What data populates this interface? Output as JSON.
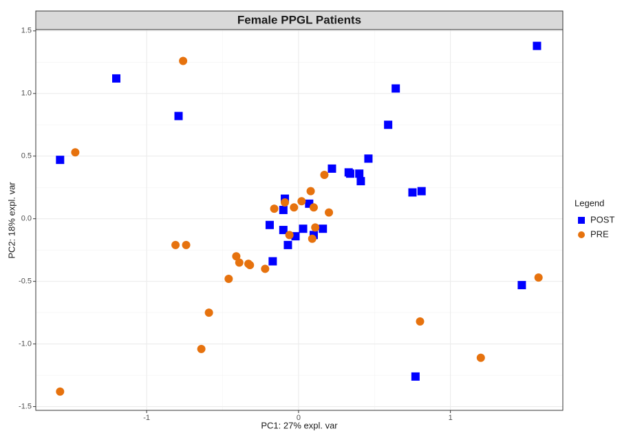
{
  "chart_data": {
    "type": "scatter",
    "title": "Female PPGL Patients",
    "x_label": "PC1: 27% expl. var",
    "y_label": "PC2: 18% expl. var",
    "legend_title": "Legend",
    "legend": "right",
    "grid": true,
    "xlim": [
      -1.73,
      1.74
    ],
    "ylim": [
      -1.53,
      1.51
    ],
    "xticks": [
      -1,
      0,
      1
    ],
    "yticks": [
      -1.5,
      {
        "value": -1,
        "label": "-1.0"
      },
      -0.5,
      {
        "value": 0,
        "label": "0.0"
      },
      0.5,
      {
        "value": 1,
        "label": "1.0"
      },
      1.5
    ],
    "series": [
      {
        "name": "POST",
        "color": "#0000ff",
        "marker": "square",
        "x": [
          -1.57,
          -1.2,
          -0.79,
          1.57,
          0.64,
          0.59,
          0.46,
          0.22,
          0.33,
          0.34,
          0.4,
          0.41,
          0.75,
          0.81,
          1.47,
          0.77,
          -0.19,
          -0.09,
          -0.1,
          0.07,
          -0.1,
          0.03,
          0.16,
          -0.02,
          -0.07,
          -0.17,
          0.1
        ],
        "values": [
          0.47,
          1.12,
          0.82,
          1.38,
          1.04,
          0.75,
          0.48,
          0.4,
          0.37,
          0.36,
          0.36,
          0.3,
          0.21,
          0.22,
          -0.53,
          -1.26,
          -0.05,
          0.16,
          0.07,
          0.12,
          -0.09,
          -0.08,
          -0.08,
          -0.14,
          -0.21,
          -0.34,
          -0.13
        ]
      },
      {
        "name": "PRE",
        "color": "#e6720e",
        "marker": "circle",
        "x": [
          -0.76,
          -1.47,
          -1.57,
          -0.81,
          -0.74,
          -0.41,
          -0.39,
          -0.33,
          -0.32,
          -0.22,
          -0.46,
          -0.59,
          -0.64,
          0.17,
          0.08,
          -0.16,
          -0.09,
          -0.03,
          0.02,
          0.1,
          0.2,
          -0.06,
          0.11,
          0.09,
          1.58,
          0.8,
          1.2
        ],
        "values": [
          1.26,
          0.53,
          -1.38,
          -0.21,
          -0.21,
          -0.3,
          -0.35,
          -0.36,
          -0.37,
          -0.4,
          -0.48,
          -0.75,
          -1.04,
          0.35,
          0.22,
          0.08,
          0.13,
          0.09,
          0.14,
          0.09,
          0.05,
          -0.13,
          -0.07,
          -0.16,
          -0.47,
          -0.82,
          -1.11
        ]
      }
    ]
  }
}
